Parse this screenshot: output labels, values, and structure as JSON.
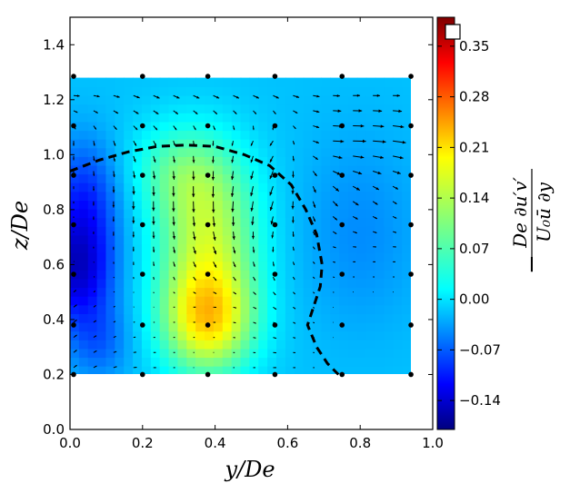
{
  "chart_data": {
    "type": "heatmap",
    "xlabel": "y/De",
    "ylabel": "z/De",
    "xlim": [
      0.0,
      1.0
    ],
    "ylim": [
      0.0,
      1.5
    ],
    "x_ticks": [
      "0.0",
      "0.2",
      "0.4",
      "0.6",
      "0.8",
      "1.0"
    ],
    "y_ticks": [
      "0.0",
      "0.2",
      "0.4",
      "0.6",
      "0.8",
      "1.0",
      "1.2",
      "1.4"
    ],
    "field_extent": {
      "y": [
        0.0,
        0.94
      ],
      "z": [
        0.2,
        1.28
      ]
    },
    "colorbar": {
      "label_lines": [
        "De ∂u′v′",
        "U₀ū   ∂y"
      ],
      "label_sign": "−",
      "range": [
        -0.18,
        0.39
      ],
      "ticks": [
        "0.35",
        "0.28",
        "0.21",
        "0.14",
        "0.07",
        "0.00",
        "−0.07",
        "−0.14"
      ],
      "tick_values": [
        0.35,
        0.28,
        0.21,
        0.14,
        0.07,
        0.0,
        -0.07,
        -0.14
      ],
      "colormap": "jet"
    },
    "background_level": 0.0,
    "blobs": [
      {
        "y": 0.38,
        "z": 0.4,
        "value": 0.18,
        "sy": 0.09,
        "sz": 0.14
      },
      {
        "y": 0.38,
        "z": 0.72,
        "value": 0.13,
        "sy": 0.1,
        "sz": 0.2
      },
      {
        "y": 0.3,
        "z": 0.95,
        "value": 0.06,
        "sy": 0.1,
        "sz": 0.12
      },
      {
        "y": 0.02,
        "z": 0.58,
        "value": -0.13,
        "sy": 0.07,
        "sz": 0.14
      },
      {
        "y": 0.04,
        "z": 0.85,
        "value": -0.08,
        "sy": 0.07,
        "sz": 0.15
      },
      {
        "y": 0.08,
        "z": 0.32,
        "value": -0.05,
        "sy": 0.06,
        "sz": 0.1
      },
      {
        "y": 0.8,
        "z": 0.72,
        "value": -0.03,
        "sy": 0.12,
        "sz": 0.25
      }
    ],
    "measurement_points": {
      "y": [
        0.01,
        0.2,
        0.38,
        0.565,
        0.75,
        0.94
      ],
      "z": [
        0.2,
        0.38,
        0.565,
        0.745,
        0.925,
        1.105,
        1.285
      ]
    },
    "boundary_curve": [
      [
        0.0,
        0.94
      ],
      [
        0.08,
        0.98
      ],
      [
        0.16,
        1.01
      ],
      [
        0.24,
        1.03
      ],
      [
        0.32,
        1.035
      ],
      [
        0.4,
        1.03
      ],
      [
        0.48,
        1.0
      ],
      [
        0.55,
        0.96
      ],
      [
        0.61,
        0.89
      ],
      [
        0.65,
        0.8
      ],
      [
        0.68,
        0.71
      ],
      [
        0.695,
        0.6
      ],
      [
        0.69,
        0.52
      ],
      [
        0.67,
        0.44
      ],
      [
        0.655,
        0.38
      ],
      [
        0.68,
        0.3
      ],
      [
        0.71,
        0.24
      ],
      [
        0.74,
        0.2
      ]
    ],
    "vector_grid": {
      "y_step": 0.055,
      "z_step": 0.055,
      "scale": 0.9
    },
    "vectors_by_row": [
      {
        "z": 1.23,
        "u": [
          0.02,
          0.02,
          0.02,
          0.02,
          0.02,
          0.02
        ],
        "w": [
          0.0,
          -0.01,
          -0.01,
          -0.01,
          0.0,
          0.0
        ]
      },
      {
        "z": 1.05,
        "u": [
          0.0,
          0.01,
          0.0,
          -0.01,
          0.04,
          0.04
        ],
        "w": [
          -0.02,
          -0.02,
          -0.02,
          -0.02,
          0.0,
          -0.01
        ]
      },
      {
        "z": 0.86,
        "u": [
          0.0,
          0.0,
          0.0,
          -0.01,
          0.02,
          0.01
        ],
        "w": [
          -0.01,
          -0.04,
          -0.05,
          -0.04,
          -0.02,
          -0.01
        ]
      },
      {
        "z": 0.65,
        "u": [
          0.0,
          0.0,
          0.01,
          0.0,
          0.01,
          0.01
        ],
        "w": [
          0.0,
          -0.02,
          -0.03,
          -0.02,
          0.0,
          0.0
        ]
      },
      {
        "z": 0.46,
        "u": [
          0.01,
          0.0,
          0.01,
          0.01,
          0.0,
          0.0
        ],
        "w": [
          0.01,
          0.0,
          0.0,
          -0.01,
          0.0,
          0.0
        ]
      },
      {
        "z": 0.25,
        "u": [
          0.01,
          0.01,
          0.0,
          0.01,
          0.0,
          0.0
        ],
        "w": [
          0.01,
          0.0,
          0.0,
          0.0,
          0.0,
          0.0
        ]
      }
    ]
  }
}
